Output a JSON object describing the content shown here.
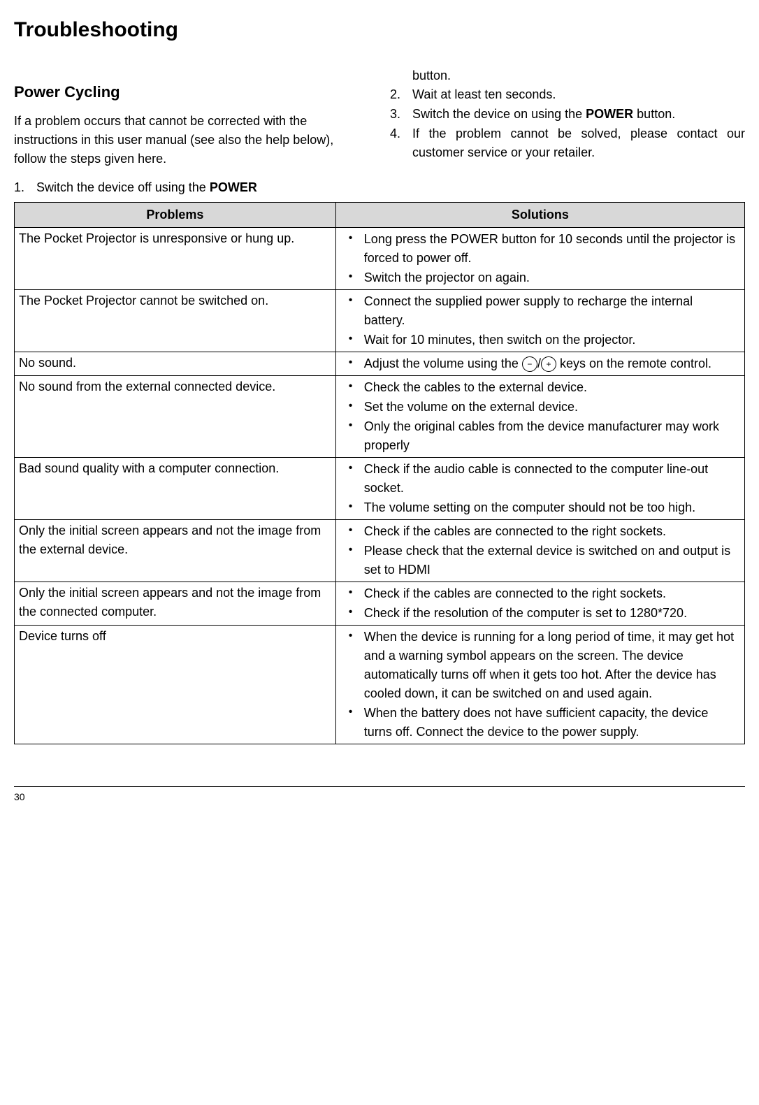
{
  "title": "Troubleshooting",
  "section_title": "Power Cycling",
  "intro": "If a problem occurs that cannot be corrected with the instructions in this user manual (see also the help below), follow the steps given here.",
  "steps_left": [
    {
      "n": "1.",
      "pre": "Switch the device off using the ",
      "bold": "POWER"
    }
  ],
  "steps_right_continue": "button.",
  "steps_right": [
    {
      "n": "2.",
      "text": "Wait at least ten seconds."
    },
    {
      "n": "3.",
      "pre": "Switch the device on using the ",
      "bold": "POWER",
      "post": " button."
    },
    {
      "n": "4.",
      "text": "If the problem cannot be solved, please contact our customer service or your retailer."
    }
  ],
  "table": {
    "header_problems": "Problems",
    "header_solutions": "Solutions",
    "rows": [
      {
        "problem": "The Pocket Projector is unresponsive or hung up.",
        "solutions": [
          "Long press the POWER button for 10 seconds until the projector is forced to power off.",
          "Switch the projector on again."
        ]
      },
      {
        "problem": "The Pocket Projector cannot be switched on.",
        "solutions": [
          "Connect the supplied power supply to recharge the internal battery.",
          "Wait for 10 minutes, then switch on the projector."
        ]
      },
      {
        "problem": "No sound.",
        "solutions_special": "volume"
      },
      {
        "problem": "No sound from the external connected device.",
        "solutions": [
          "Check the cables to the external device.",
          "Set the volume on the external device.",
          "Only the original cables from the device manufacturer may work properly"
        ]
      },
      {
        "problem": "Bad sound quality with a computer connection.",
        "solutions": [
          "Check if the audio cable is connected to the computer line-out socket.",
          "The volume setting on the computer should not be too high."
        ]
      },
      {
        "problem": "Only the initial screen appears and not the image from the external device.",
        "solutions": [
          "Check if the cables are connected to the right sockets.",
          "Please check that the external device is switched on and output is set to HDMI"
        ]
      },
      {
        "problem": "Only the initial screen appears and not the image from the connected computer.",
        "solutions": [
          "Check if the cables are connected to the right sockets.",
          "Check if the resolution of the computer is set to 1280*720."
        ]
      },
      {
        "problem": "Device turns off",
        "solutions": [
          "When the device is running for a long period of time, it may get hot and a warning symbol appears on the screen. The device automatically turns off when it gets too hot. After the device has cooled down, it can be switched on and used again.",
          "When the battery does not have sufficient capacity, the device turns off. Connect the device to the power supply."
        ]
      }
    ]
  },
  "volume_text_pre": "Adjust the volume using the ",
  "volume_text_post": " keys on the remote control.",
  "page_number": "30"
}
